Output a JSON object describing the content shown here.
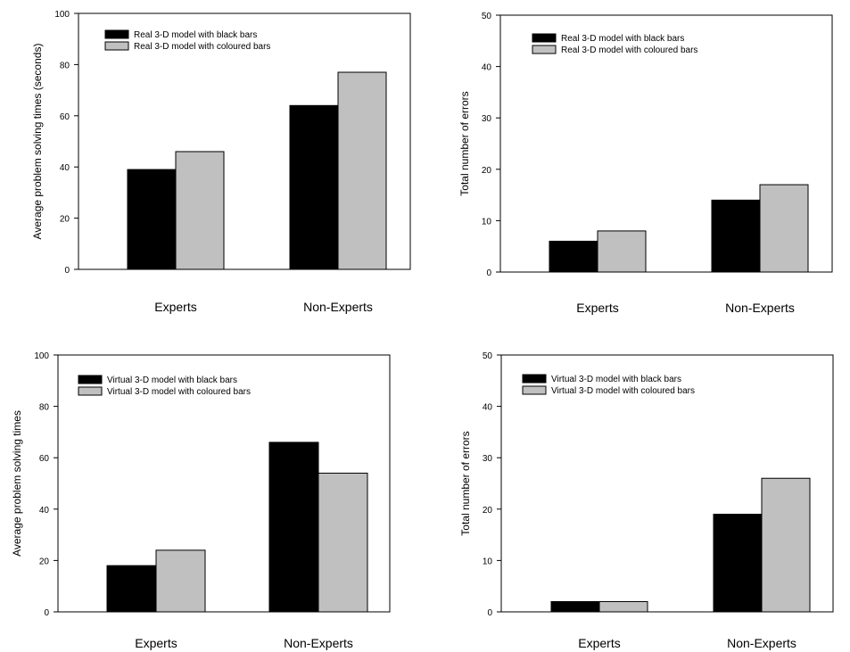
{
  "chart_data": [
    {
      "type": "bar",
      "categories": [
        "Experts",
        "Non-Experts"
      ],
      "series": [
        {
          "name": "Real 3-D model with black bars",
          "values": [
            39,
            64
          ],
          "color": "#000000"
        },
        {
          "name": "Real 3-D model with coloured bars",
          "values": [
            46,
            77
          ],
          "color": "#c0c0c0"
        }
      ],
      "ylabel": "Average problem solving times (seconds)",
      "ylim": [
        0,
        100
      ],
      "yticks": [
        0,
        20,
        40,
        60,
        80,
        100
      ],
      "legend_position": "top-left",
      "grid": false
    },
    {
      "type": "bar",
      "categories": [
        "Experts",
        "Non-Experts"
      ],
      "series": [
        {
          "name": "Real 3-D model with black bars",
          "values": [
            6,
            14
          ],
          "color": "#000000"
        },
        {
          "name": "Real 3-D model with coloured bars",
          "values": [
            8,
            17
          ],
          "color": "#c0c0c0"
        }
      ],
      "ylabel": "Total number of errors",
      "ylim": [
        0,
        50
      ],
      "yticks": [
        0,
        10,
        20,
        30,
        40,
        50
      ],
      "legend_position": "top-left",
      "grid": false
    },
    {
      "type": "bar",
      "categories": [
        "Experts",
        "Non-Experts"
      ],
      "series": [
        {
          "name": "Virtual 3-D model with black bars",
          "values": [
            18,
            66
          ],
          "color": "#000000"
        },
        {
          "name": "Virtual 3-D model with coloured bars",
          "values": [
            24,
            54
          ],
          "color": "#c0c0c0"
        }
      ],
      "ylabel": "Average problem solving times",
      "ylim": [
        0,
        100
      ],
      "yticks": [
        0,
        20,
        40,
        60,
        80,
        100
      ],
      "legend_position": "top-left",
      "grid": false
    },
    {
      "type": "bar",
      "categories": [
        "Experts",
        "Non-Experts"
      ],
      "series": [
        {
          "name": "Virtual 3-D model with black bars",
          "values": [
            2,
            19
          ],
          "color": "#000000"
        },
        {
          "name": "Virtual 3-D model with coloured bars",
          "values": [
            2,
            26
          ],
          "color": "#c0c0c0"
        }
      ],
      "ylabel": "Total number of errors",
      "ylim": [
        0,
        50
      ],
      "yticks": [
        0,
        10,
        20,
        30,
        40,
        50
      ],
      "legend_position": "top-left",
      "grid": false
    }
  ]
}
